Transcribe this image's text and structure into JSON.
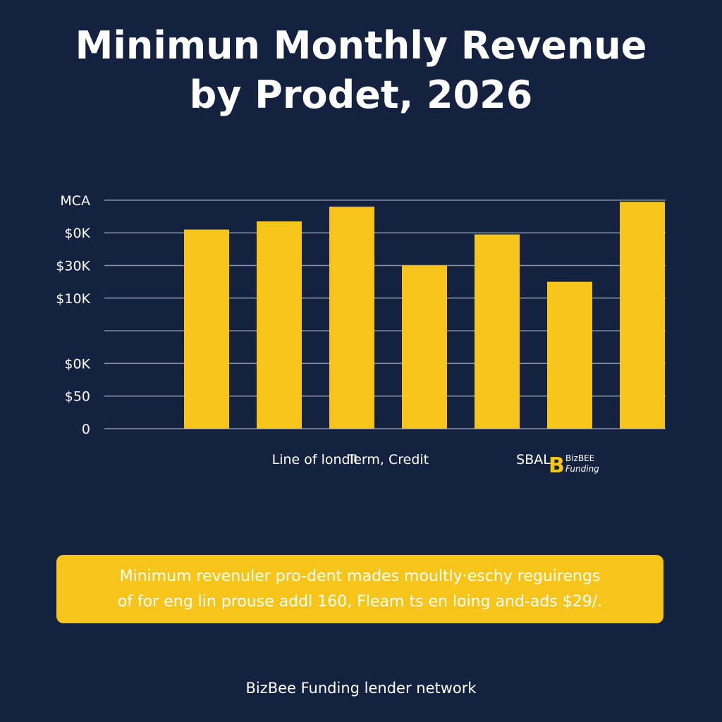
{
  "title": {
    "line1": "Minimun Monthly Revenue",
    "line2": "by  Prodet, 2026"
  },
  "colors": {
    "background": "#15223f",
    "bar": "#f7c51a",
    "gridline": "#8a93a8",
    "text": "#ffffff"
  },
  "chart_data": {
    "type": "bar",
    "title": "Minimun Monthly Revenue by  Prodet, 2026",
    "y_tick_labels": [
      "0",
      "$50",
      "$0K",
      "",
      "$10K",
      "$30K",
      "$0K",
      "MCA"
    ],
    "x_labels": [
      {
        "text": "Line of londit",
        "position": 1.5
      },
      {
        "text": "Term, Credit",
        "position": 2.5
      },
      {
        "text": "SBAL",
        "position": 4.5
      }
    ],
    "values": [
      6.1,
      6.35,
      6.8,
      5.0,
      5.95,
      4.5,
      6.95
    ],
    "ylim": [
      0,
      7
    ],
    "grid": true,
    "logo": {
      "icon": "bee-b-logo-icon",
      "line1": "BizBEE",
      "line2": "Funding"
    }
  },
  "banner": {
    "line1": "Minimum revenuler pro-dent mades moultly·eschy reguirengs",
    "line2": "of for eng lin prouse addl 160, Fleam ts en loing and-ads $29/."
  },
  "footer": "BizBee Funding lender network"
}
